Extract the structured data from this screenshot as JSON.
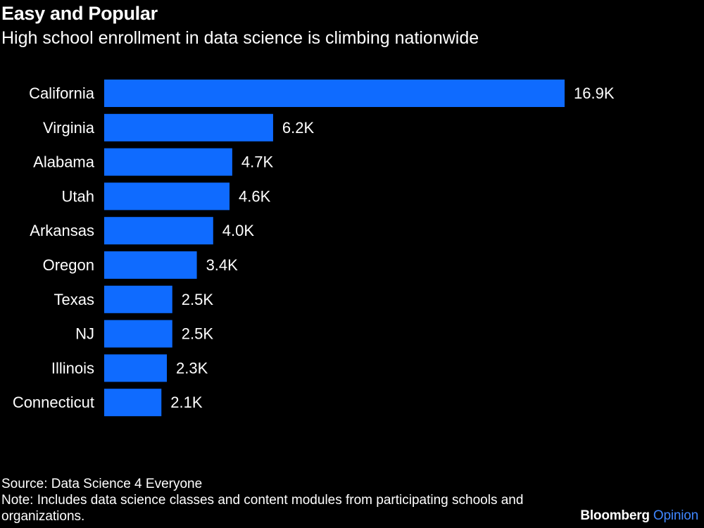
{
  "header": {
    "title": "Easy and Popular",
    "subtitle": "High school enrollment in data science is climbing nationwide"
  },
  "chart_data": {
    "type": "bar",
    "orientation": "horizontal",
    "categories": [
      "California",
      "Virginia",
      "Alabama",
      "Utah",
      "Arkansas",
      "Oregon",
      "Texas",
      "NJ",
      "Illinois",
      "Connecticut"
    ],
    "values": [
      16900,
      6200,
      4700,
      4600,
      4000,
      3400,
      2500,
      2500,
      2300,
      2100
    ],
    "value_labels": [
      "16.9K",
      "6.2K",
      "4.7K",
      "4.6K",
      "4.0K",
      "3.4K",
      "2.5K",
      "2.5K",
      "2.3K",
      "2.1K"
    ],
    "title": "Easy and Popular",
    "subtitle": "High school enrollment in data science is climbing nationwide",
    "xlabel": "",
    "ylabel": "",
    "xlim": [
      0,
      16900
    ],
    "grid": false,
    "legend": "none",
    "bar_color": "#0f6bff"
  },
  "footer": {
    "source": "Source: Data Science 4 Everyone",
    "note": "Note: Includes data science classes and content modules from participating schools and organizations."
  },
  "brand": {
    "name": "Bloomberg",
    "section": "Opinion",
    "section_color": "#3f86ff"
  }
}
